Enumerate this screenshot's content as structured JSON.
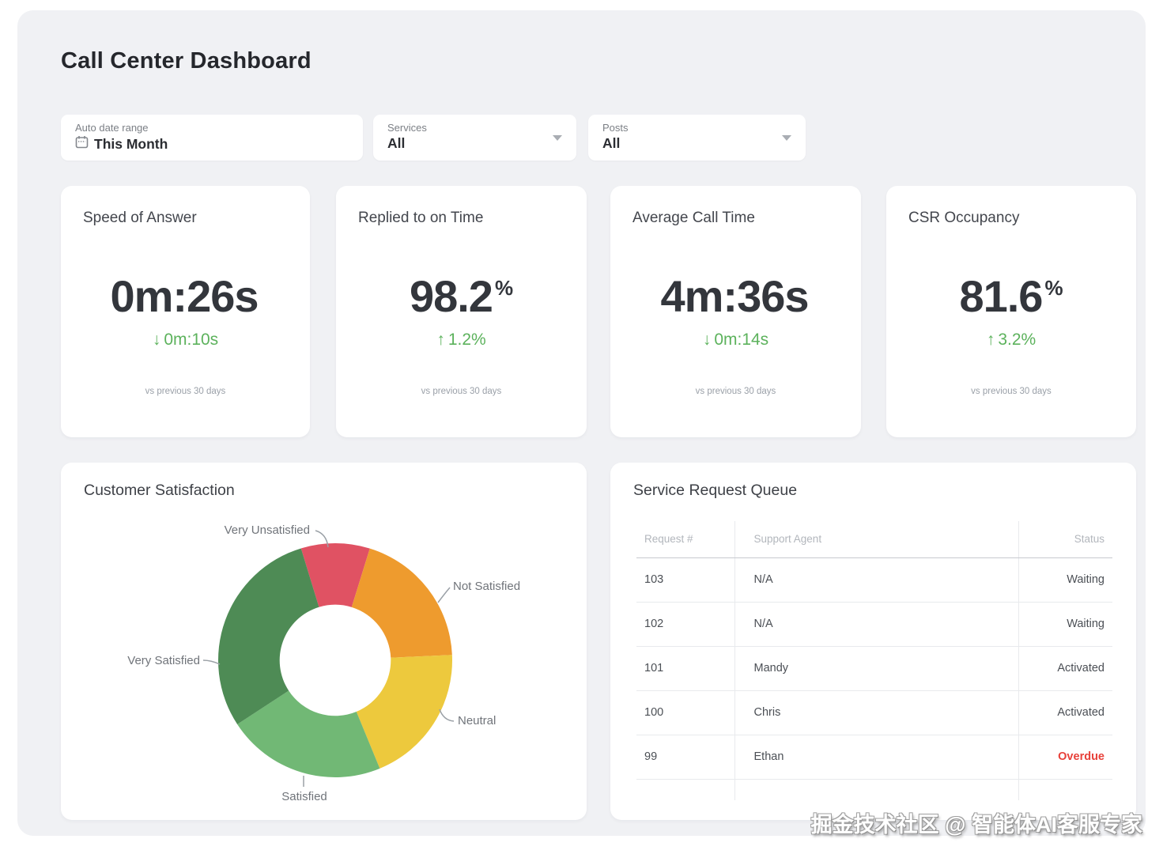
{
  "page": {
    "title": "Call Center Dashboard"
  },
  "filters": {
    "date_range": {
      "label": "Auto date range",
      "value": "This Month"
    },
    "services": {
      "label": "Services",
      "value": "All"
    },
    "posts": {
      "label": "Posts",
      "value": "All"
    }
  },
  "kpis": [
    {
      "title": "Speed of Answer",
      "value": "0m:26s",
      "unit": "",
      "delta_arrow": "↓",
      "delta": "0m:10s",
      "footnote": "vs previous 30 days"
    },
    {
      "title": "Replied to on Time",
      "value": "98.2",
      "unit": "%",
      "delta_arrow": "↑",
      "delta": "1.2%",
      "footnote": "vs previous 30 days"
    },
    {
      "title": "Average Call Time",
      "value": "4m:36s",
      "unit": "",
      "delta_arrow": "↓",
      "delta": "0m:14s",
      "footnote": "vs previous 30 days"
    },
    {
      "title": "CSR Occupancy",
      "value": "81.6",
      "unit": "%",
      "delta_arrow": "↑",
      "delta": "3.2%",
      "footnote": "vs previous 30 days"
    }
  ],
  "colors": {
    "positive_delta": "#5cb25c",
    "overdue": "#e8413a"
  },
  "chart_data": [
    {
      "type": "pie",
      "title": "Customer Satisfaction",
      "labels": [
        "Very Unsatisfied",
        "Not Satisfied",
        "Neutral",
        "Satisfied",
        "Very Satisfied"
      ],
      "values": [
        9.5,
        19.5,
        19.5,
        22,
        29.5
      ],
      "colors": [
        "#e05263",
        "#ee9b2e",
        "#edc93d",
        "#71b875",
        "#4e8b55"
      ],
      "start_angle_deg": -17,
      "donut_hole_ratio": 0.475,
      "legend_position": "callout-labels"
    },
    {
      "type": "table",
      "title": "Service Request Queue",
      "columns": [
        "Request #",
        "Support Agent",
        "Status"
      ],
      "rows": [
        [
          "103",
          "N/A",
          "Waiting"
        ],
        [
          "102",
          "N/A",
          "Waiting"
        ],
        [
          "101",
          "Mandy",
          "Activated"
        ],
        [
          "100",
          "Chris",
          "Activated"
        ],
        [
          "99",
          "Ethan",
          "Overdue"
        ]
      ],
      "status_colors": {
        "Overdue": "#e8413a"
      }
    }
  ],
  "watermark": "掘金技术社区 @ 智能体AI客服专家"
}
